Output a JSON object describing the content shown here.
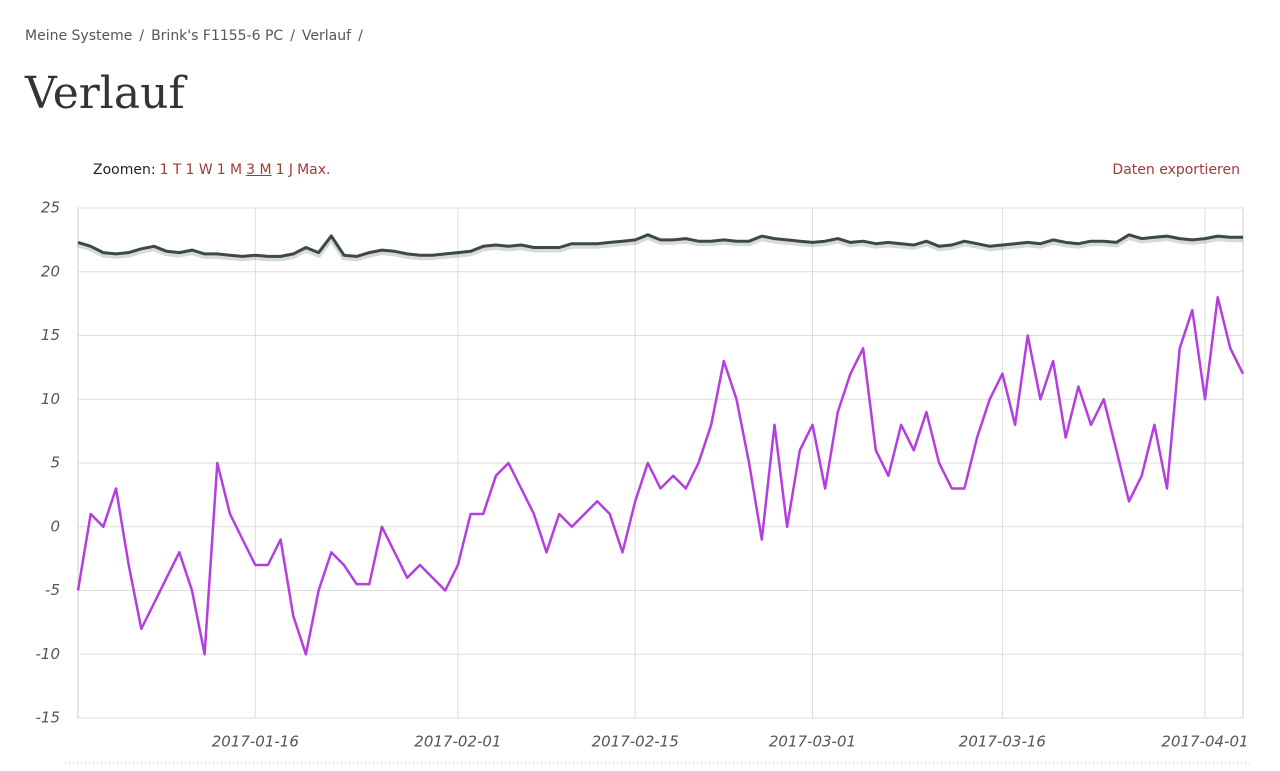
{
  "breadcrumb": {
    "items": [
      "Meine Systeme",
      "Brink's F1155-6 PC",
      "Verlauf"
    ],
    "separator": "/"
  },
  "header": {
    "title": "Verlauf"
  },
  "zoom": {
    "label": "Zoomen:",
    "options": [
      "1 T",
      "1 W",
      "1 M",
      "3 M",
      "1 J",
      "Max."
    ],
    "active": 3
  },
  "export": "Daten exportieren",
  "chart_data": {
    "type": "line",
    "x": [
      "2017-01-02",
      "2017-01-03",
      "2017-01-04",
      "2017-01-05",
      "2017-01-06",
      "2017-01-07",
      "2017-01-08",
      "2017-01-09",
      "2017-01-10",
      "2017-01-11",
      "2017-01-12",
      "2017-01-13",
      "2017-01-14",
      "2017-01-15",
      "2017-01-16",
      "2017-01-17",
      "2017-01-18",
      "2017-01-19",
      "2017-01-20",
      "2017-01-21",
      "2017-01-22",
      "2017-01-23",
      "2017-01-24",
      "2017-01-25",
      "2017-01-26",
      "2017-01-27",
      "2017-01-28",
      "2017-01-29",
      "2017-01-30",
      "2017-01-31",
      "2017-02-01",
      "2017-02-02",
      "2017-02-03",
      "2017-02-04",
      "2017-02-05",
      "2017-02-06",
      "2017-02-07",
      "2017-02-08",
      "2017-02-09",
      "2017-02-10",
      "2017-02-11",
      "2017-02-12",
      "2017-02-13",
      "2017-02-14",
      "2017-02-15",
      "2017-02-16",
      "2017-02-17",
      "2017-02-18",
      "2017-02-19",
      "2017-02-20",
      "2017-02-21",
      "2017-02-22",
      "2017-02-23",
      "2017-02-24",
      "2017-02-25",
      "2017-02-26",
      "2017-02-27",
      "2017-02-28",
      "2017-03-01",
      "2017-03-02",
      "2017-03-03",
      "2017-03-04",
      "2017-03-05",
      "2017-03-06",
      "2017-03-07",
      "2017-03-08",
      "2017-03-09",
      "2017-03-10",
      "2017-03-11",
      "2017-03-12",
      "2017-03-13",
      "2017-03-14",
      "2017-03-15",
      "2017-03-16",
      "2017-03-17",
      "2017-03-18",
      "2017-03-19",
      "2017-03-20",
      "2017-03-21",
      "2017-03-22",
      "2017-03-23",
      "2017-03-24",
      "2017-03-25",
      "2017-03-26",
      "2017-03-27",
      "2017-03-28",
      "2017-03-29",
      "2017-03-30",
      "2017-03-31",
      "2017-04-01",
      "2017-04-02",
      "2017-04-03",
      "2017-04-04"
    ],
    "series": [
      {
        "color": "#3b4a44",
        "values": [
          22.3,
          22,
          21.5,
          21.4,
          21.5,
          21.8,
          22,
          21.6,
          21.5,
          21.7,
          21.4,
          21.4,
          21.3,
          21.2,
          21.3,
          21.2,
          21.2,
          21.4,
          21.9,
          21.5,
          22.8,
          21.3,
          21.2,
          21.5,
          21.7,
          21.6,
          21.4,
          21.3,
          21.3,
          21.4,
          21.5,
          21.6,
          22,
          22.1,
          22,
          22.1,
          21.9,
          21.9,
          21.9,
          22.2,
          22.2,
          22.2,
          22.3,
          22.4,
          22.5,
          22.9,
          22.5,
          22.5,
          22.6,
          22.4,
          22.4,
          22.5,
          22.4,
          22.4,
          22.8,
          22.6,
          22.5,
          22.4,
          22.3,
          22.4,
          22.6,
          22.3,
          22.4,
          22.2,
          22.3,
          22.2,
          22.1,
          22.4,
          22,
          22.1,
          22.4,
          22.2,
          22,
          22.1,
          22.2,
          22.3,
          22.2,
          22.5,
          22.3,
          22.2,
          22.4,
          22.4,
          22.3,
          22.9,
          22.6,
          22.7,
          22.8,
          22.6,
          22.5,
          22.6,
          22.8,
          22.7,
          22.7
        ]
      },
      {
        "color": "#b43ee0",
        "values": [
          -5,
          1,
          0,
          3,
          -3,
          -8,
          -6,
          -4,
          -2,
          -5,
          -10,
          5,
          1,
          -1,
          -3,
          -3,
          -1,
          -7,
          -10,
          -5,
          -2,
          -3,
          -4.5,
          -4.5,
          0,
          -2,
          -4,
          -3,
          -4,
          -5,
          -3,
          1,
          1,
          4,
          5,
          3,
          1,
          -2,
          1,
          0,
          1,
          2,
          1,
          -2,
          2,
          5,
          3,
          4,
          3,
          5,
          8,
          13,
          10,
          5,
          -1,
          8,
          0,
          6,
          8,
          3,
          9,
          12,
          14,
          6,
          4,
          8,
          6,
          9,
          5,
          3,
          3,
          7,
          10,
          12,
          8,
          15,
          10,
          13,
          7,
          11,
          8,
          10,
          6,
          2,
          4,
          8,
          3,
          14,
          17,
          10,
          18,
          14,
          12
        ]
      }
    ],
    "xlim": [
      "2017-01-02",
      "2017-04-04"
    ],
    "xticks": [
      "2017-01-16",
      "2017-02-01",
      "2017-02-15",
      "2017-03-01",
      "2017-03-16",
      "2017-04-01"
    ],
    "ylim": [
      -15,
      25
    ],
    "yticks": [
      -15,
      -10,
      -5,
      0,
      5,
      10,
      15,
      20,
      25
    ],
    "grid": true
  }
}
